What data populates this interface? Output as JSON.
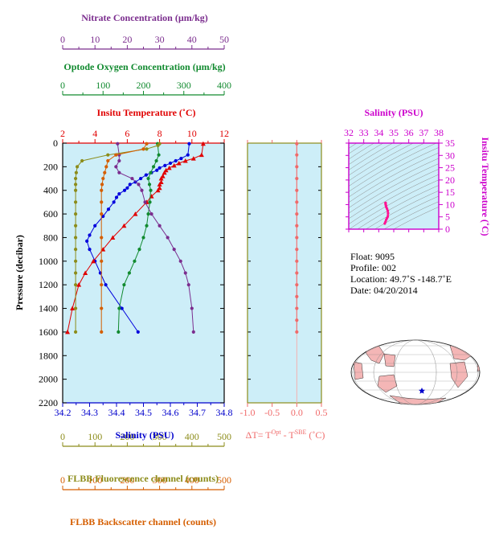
{
  "axes": {
    "nitrate": {
      "label": "Nitrate Concentration (µm/kg)",
      "ticks": [
        "0",
        "10",
        "20",
        "30",
        "40",
        "50"
      ],
      "range": [
        0,
        50
      ],
      "color": "#7b2d8e"
    },
    "oxygen": {
      "label": "Optode Oxygen Concentration (µm/kg)",
      "ticks": [
        "0",
        "100",
        "200",
        "300",
        "400"
      ],
      "range": [
        0,
        400
      ],
      "color": "#118a2f"
    },
    "temperature": {
      "label": "Insitu Temperature (˚C)",
      "ticks": [
        "2",
        "4",
        "6",
        "8",
        "10",
        "12"
      ],
      "range": [
        2,
        12
      ],
      "color": "#e00000"
    },
    "pressure": {
      "label": "Pressure (decibar)",
      "ticks": [
        "0",
        "200",
        "400",
        "600",
        "800",
        "1000",
        "1200",
        "1400",
        "1600",
        "1800",
        "2000",
        "2200"
      ],
      "range": [
        0,
        2200
      ],
      "color": "#000000"
    },
    "salinity": {
      "label": "Salinity (PSU)",
      "ticks": [
        "34.2",
        "34.3",
        "34.4",
        "34.5",
        "34.6",
        "34.7",
        "34.8"
      ],
      "range": [
        34.2,
        34.8
      ],
      "color": "#0000cc"
    },
    "fluorescence": {
      "label": "FLBB Fluorescence channel (counts)",
      "ticks": [
        "0",
        "100",
        "200",
        "300",
        "400",
        "500"
      ],
      "range": [
        0,
        500
      ],
      "color": "#8c8c1a"
    },
    "backscatter": {
      "label": "FLBB Backscatter channel (counts)",
      "ticks": [
        "0",
        "100",
        "200",
        "300",
        "400",
        "500"
      ],
      "range": [
        0,
        500
      ],
      "color": "#d55e00"
    },
    "delta_t": {
      "label": "ΔT= T",
      "sup1": "Opt",
      "mid": " - T",
      "sup2": "SBE",
      "unit": " (˚C)",
      "ticks": [
        "-1.0",
        "-0.5",
        "0.0",
        "0.5"
      ],
      "range": [
        -1.0,
        0.5
      ],
      "color": "#f06a6a"
    },
    "ts_salinity": {
      "label": "Salinity (PSU)",
      "ticks": [
        "32",
        "33",
        "34",
        "35",
        "36",
        "37",
        "38"
      ],
      "range": [
        32,
        38
      ],
      "color": "#cc00cc"
    },
    "ts_temperature": {
      "label": "Insitu Temperature (˚C)",
      "ticks": [
        "0",
        "5",
        "10",
        "15",
        "20",
        "25",
        "30",
        "35"
      ],
      "range": [
        0,
        35
      ],
      "color": "#cc00cc"
    }
  },
  "info": {
    "float": "Float:  9095",
    "profile": "Profile:  002",
    "location": "Location:  49.7˚S  -148.7˚E",
    "date": "Date:  04/20/2014"
  },
  "colors": {
    "plot_bg": "#cdeef8",
    "salinity": "#0000dd",
    "temperature": "#e00000",
    "oxygen": "#118a2f",
    "nitrate": "#7b2d8e",
    "fluorescence": "#8c8c1a",
    "backscatter": "#d55e00",
    "delta_t": "#f06a6a",
    "ts_frame": "#cc00cc",
    "ts_point": "#ff1493",
    "map_land": "#f4b6b6"
  },
  "chart_data": {
    "type": "line",
    "y_axis": "Pressure (decibar)",
    "series": [
      {
        "name": "Salinity (PSU)",
        "axis": "salinity",
        "marker": "circle",
        "p": [
          5,
          100,
          130,
          150,
          170,
          190,
          210,
          230,
          250,
          270,
          300,
          330,
          350,
          380,
          400,
          430,
          460,
          500,
          560,
          620,
          700,
          780,
          830,
          900,
          1000,
          1100,
          1200,
          1400,
          1600
        ],
        "values": [
          34.67,
          34.665,
          34.64,
          34.62,
          34.6,
          34.58,
          34.56,
          34.55,
          34.53,
          34.51,
          34.49,
          34.47,
          34.45,
          34.44,
          34.43,
          34.41,
          34.4,
          34.39,
          34.37,
          34.35,
          34.32,
          34.3,
          34.29,
          34.3,
          34.32,
          34.34,
          34.36,
          34.42,
          34.48
        ]
      },
      {
        "name": "Insitu Temperature (˚C)",
        "axis": "temperature",
        "marker": "triangle",
        "p": [
          5,
          100,
          130,
          150,
          170,
          190,
          210,
          230,
          250,
          280,
          300,
          330,
          350,
          380,
          400,
          450,
          500,
          600,
          700,
          800,
          900,
          1000,
          1100,
          1200,
          1400,
          1600
        ],
        "values": [
          10.7,
          10.6,
          10.1,
          9.6,
          9.2,
          8.9,
          8.6,
          8.4,
          8.3,
          8.2,
          8.1,
          8.1,
          8.0,
          8.0,
          7.9,
          7.5,
          7.2,
          6.5,
          5.8,
          5.1,
          4.5,
          3.9,
          3.4,
          3.0,
          2.6,
          2.3
        ]
      },
      {
        "name": "Optode Oxygen Concentration (µm/kg)",
        "axis": "oxygen",
        "marker": "circle",
        "p": [
          5,
          100,
          150,
          200,
          250,
          300,
          350,
          400,
          500,
          600,
          700,
          800,
          900,
          1000,
          1100,
          1200,
          1400,
          1600
        ],
        "values": [
          235,
          238,
          232,
          225,
          218,
          212,
          215,
          218,
          216,
          212,
          208,
          200,
          190,
          178,
          165,
          152,
          140,
          138
        ]
      },
      {
        "name": "Nitrate Concentration (µm/kg)",
        "axis": "nitrate",
        "marker": "circle",
        "p": [
          5,
          100,
          150,
          200,
          250,
          300,
          350,
          400,
          500,
          600,
          700,
          800,
          900,
          1000,
          1100,
          1200,
          1400,
          1600
        ],
        "values": [
          17,
          17.5,
          17.5,
          16.5,
          17.5,
          21.5,
          23.5,
          24.5,
          25.5,
          27.5,
          30,
          32.5,
          34.5,
          36.5,
          38,
          39,
          40,
          40.5
        ]
      },
      {
        "name": "FLBB Fluorescence channel (counts)",
        "axis": "fluorescence",
        "marker": "circle",
        "p": [
          5,
          20,
          50,
          100,
          150,
          200,
          250,
          300,
          350,
          400,
          500,
          600,
          700,
          800,
          900,
          1000,
          1100,
          1200,
          1400,
          1600
        ],
        "values": [
          300,
          295,
          260,
          140,
          60,
          45,
          42,
          40,
          40,
          40,
          40,
          40,
          40,
          40,
          40,
          40,
          40,
          40,
          40,
          40
        ]
      },
      {
        "name": "FLBB Backscatter channel (counts)",
        "axis": "backscatter",
        "marker": "circle",
        "p": [
          5,
          50,
          100,
          150,
          200,
          250,
          300,
          350,
          400,
          500,
          600,
          800,
          1000,
          1200,
          1400,
          1600
        ],
        "values": [
          260,
          250,
          165,
          140,
          135,
          130,
          125,
          122,
          120,
          120,
          120,
          120,
          120,
          120,
          120,
          120
        ]
      },
      {
        "name": "ΔT",
        "axis": "delta_t",
        "marker": "circle",
        "p": [
          5,
          100,
          200,
          300,
          400,
          500,
          600,
          700,
          800,
          900,
          1000,
          1100,
          1200,
          1300,
          1400,
          1500,
          1600
        ],
        "values": [
          0.0,
          0.0,
          0.0,
          0.0,
          0.0,
          0.0,
          0.0,
          0.0,
          0.0,
          0.0,
          0.0,
          0.0,
          0.0,
          0.0,
          0.0,
          0.0,
          0.0
        ]
      },
      {
        "name": "T-S",
        "axis": "ts",
        "marker": "circle",
        "x": [
          34.4,
          34.45,
          34.5,
          34.55,
          34.6,
          34.62,
          34.6,
          34.55,
          34.5,
          34.48,
          34.46,
          34.45,
          34.46
        ],
        "values": [
          2.3,
          3.0,
          3.9,
          4.5,
          5.1,
          6.5,
          7.5,
          8.3,
          9.0,
          9.6,
          10.1,
          10.6,
          10.7
        ]
      }
    ]
  }
}
